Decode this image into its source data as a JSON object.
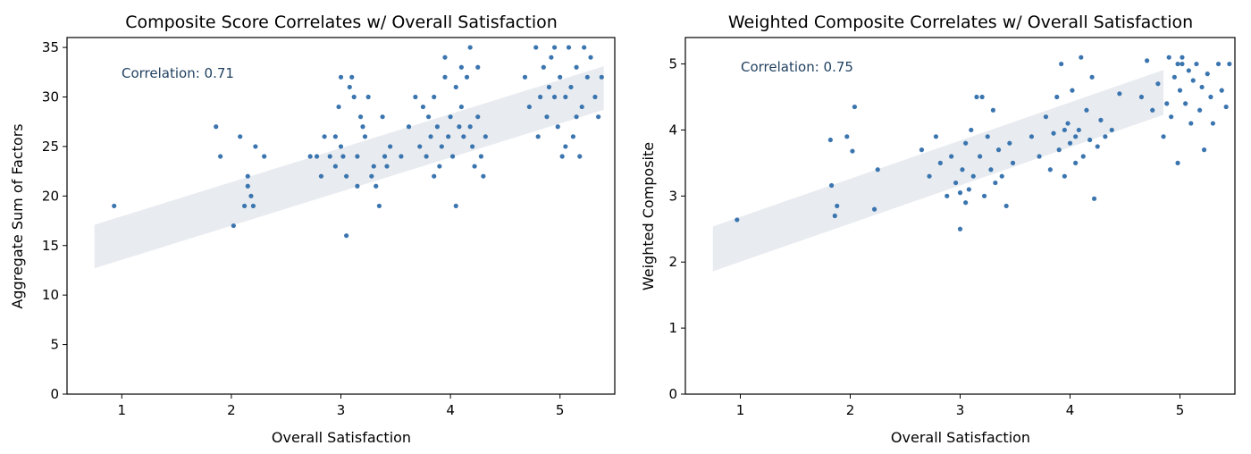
{
  "chart_data": [
    {
      "type": "scatter",
      "title": "Composite Score Correlates w/ Overall Satisfaction",
      "xlabel": "Overall Satisfaction",
      "ylabel": "Aggregate Sum of Factors",
      "xlim": [
        0.5,
        5.5
      ],
      "ylim": [
        0,
        36
      ],
      "xticks": [
        1,
        2,
        3,
        4,
        5
      ],
      "yticks": [
        0,
        5,
        10,
        15,
        20,
        25,
        30,
        35
      ],
      "annotation": "Correlation: 0.71",
      "point_color": "#3b75af",
      "band_color": "#e8ecf0",
      "trend_band": {
        "x": [
          0.75,
          5.4
        ],
        "y_center": [
          14.9,
          30.9
        ],
        "half_width": 2.2
      },
      "points": [
        {
          "x": 0.93,
          "y": 19
        },
        {
          "x": 1.86,
          "y": 27
        },
        {
          "x": 1.9,
          "y": 24
        },
        {
          "x": 2.02,
          "y": 17
        },
        {
          "x": 2.08,
          "y": 26
        },
        {
          "x": 2.12,
          "y": 19
        },
        {
          "x": 2.15,
          "y": 22
        },
        {
          "x": 2.15,
          "y": 21
        },
        {
          "x": 2.18,
          "y": 20
        },
        {
          "x": 2.2,
          "y": 19
        },
        {
          "x": 2.22,
          "y": 25
        },
        {
          "x": 2.3,
          "y": 24
        },
        {
          "x": 2.72,
          "y": 24
        },
        {
          "x": 2.78,
          "y": 24
        },
        {
          "x": 2.82,
          "y": 22
        },
        {
          "x": 2.85,
          "y": 26
        },
        {
          "x": 2.9,
          "y": 24
        },
        {
          "x": 2.95,
          "y": 26
        },
        {
          "x": 2.98,
          "y": 29
        },
        {
          "x": 3.0,
          "y": 32
        },
        {
          "x": 3.02,
          "y": 24
        },
        {
          "x": 3.05,
          "y": 22
        },
        {
          "x": 3.05,
          "y": 16
        },
        {
          "x": 3.08,
          "y": 31
        },
        {
          "x": 3.1,
          "y": 32
        },
        {
          "x": 3.12,
          "y": 30
        },
        {
          "x": 3.15,
          "y": 24
        },
        {
          "x": 3.18,
          "y": 28
        },
        {
          "x": 3.2,
          "y": 27
        },
        {
          "x": 3.22,
          "y": 26
        },
        {
          "x": 3.25,
          "y": 30
        },
        {
          "x": 3.28,
          "y": 22
        },
        {
          "x": 3.3,
          "y": 23
        },
        {
          "x": 3.32,
          "y": 21
        },
        {
          "x": 3.35,
          "y": 19
        },
        {
          "x": 3.38,
          "y": 28
        },
        {
          "x": 3.4,
          "y": 24
        },
        {
          "x": 3.42,
          "y": 23
        },
        {
          "x": 3.45,
          "y": 25
        },
        {
          "x": 2.95,
          "y": 23
        },
        {
          "x": 3.15,
          "y": 21
        },
        {
          "x": 3.0,
          "y": 25
        },
        {
          "x": 3.55,
          "y": 24
        },
        {
          "x": 3.62,
          "y": 27
        },
        {
          "x": 3.68,
          "y": 30
        },
        {
          "x": 3.72,
          "y": 25
        },
        {
          "x": 3.75,
          "y": 29
        },
        {
          "x": 3.78,
          "y": 24
        },
        {
          "x": 3.8,
          "y": 28
        },
        {
          "x": 3.82,
          "y": 26
        },
        {
          "x": 3.85,
          "y": 30
        },
        {
          "x": 3.88,
          "y": 27
        },
        {
          "x": 3.9,
          "y": 23
        },
        {
          "x": 3.92,
          "y": 25
        },
        {
          "x": 3.95,
          "y": 32
        },
        {
          "x": 3.98,
          "y": 26
        },
        {
          "x": 4.0,
          "y": 28
        },
        {
          "x": 4.02,
          "y": 24
        },
        {
          "x": 4.05,
          "y": 19
        },
        {
          "x": 4.08,
          "y": 27
        },
        {
          "x": 4.1,
          "y": 29
        },
        {
          "x": 4.12,
          "y": 26
        },
        {
          "x": 4.15,
          "y": 32
        },
        {
          "x": 4.18,
          "y": 27
        },
        {
          "x": 4.2,
          "y": 25
        },
        {
          "x": 4.22,
          "y": 23
        },
        {
          "x": 4.25,
          "y": 28
        },
        {
          "x": 4.28,
          "y": 24
        },
        {
          "x": 4.3,
          "y": 22
        },
        {
          "x": 4.32,
          "y": 26
        },
        {
          "x": 4.1,
          "y": 33
        },
        {
          "x": 4.18,
          "y": 35
        },
        {
          "x": 3.95,
          "y": 34
        },
        {
          "x": 4.25,
          "y": 33
        },
        {
          "x": 4.05,
          "y": 31
        },
        {
          "x": 3.85,
          "y": 22
        },
        {
          "x": 4.68,
          "y": 32
        },
        {
          "x": 4.72,
          "y": 29
        },
        {
          "x": 4.78,
          "y": 35
        },
        {
          "x": 4.82,
          "y": 30
        },
        {
          "x": 4.85,
          "y": 33
        },
        {
          "x": 4.88,
          "y": 28
        },
        {
          "x": 4.9,
          "y": 31
        },
        {
          "x": 4.92,
          "y": 34
        },
        {
          "x": 4.95,
          "y": 30
        },
        {
          "x": 4.98,
          "y": 27
        },
        {
          "x": 5.0,
          "y": 32
        },
        {
          "x": 5.02,
          "y": 24
        },
        {
          "x": 5.05,
          "y": 30
        },
        {
          "x": 5.08,
          "y": 35
        },
        {
          "x": 5.1,
          "y": 31
        },
        {
          "x": 5.12,
          "y": 26
        },
        {
          "x": 5.15,
          "y": 33
        },
        {
          "x": 5.18,
          "y": 24
        },
        {
          "x": 5.2,
          "y": 29
        },
        {
          "x": 5.22,
          "y": 35
        },
        {
          "x": 5.25,
          "y": 32
        },
        {
          "x": 5.28,
          "y": 34
        },
        {
          "x": 5.32,
          "y": 30
        },
        {
          "x": 5.35,
          "y": 28
        },
        {
          "x": 5.38,
          "y": 32
        },
        {
          "x": 5.05,
          "y": 25
        },
        {
          "x": 4.95,
          "y": 35
        },
        {
          "x": 5.15,
          "y": 28
        },
        {
          "x": 4.8,
          "y": 26
        }
      ]
    },
    {
      "type": "scatter",
      "title": "Weighted Composite Correlates w/ Overall Satisfaction",
      "xlabel": "Overall Satisfaction",
      "ylabel": "Weighted Composite",
      "xlim": [
        0.5,
        5.5
      ],
      "ylim": [
        0,
        5.4
      ],
      "xticks": [
        1,
        2,
        3,
        4,
        5
      ],
      "yticks": [
        0,
        1,
        2,
        3,
        4,
        5
      ],
      "annotation": "Correlation: 0.75",
      "point_color": "#3b75af",
      "band_color": "#e8ecf0",
      "trend_band": {
        "x": [
          0.75,
          4.85
        ],
        "y_center": [
          2.2,
          4.57
        ],
        "half_width": 0.34
      },
      "points": [
        {
          "x": 0.97,
          "y": 2.64
        },
        {
          "x": 1.82,
          "y": 3.85
        },
        {
          "x": 1.83,
          "y": 3.16
        },
        {
          "x": 1.86,
          "y": 2.7
        },
        {
          "x": 1.88,
          "y": 2.85
        },
        {
          "x": 1.97,
          "y": 3.9
        },
        {
          "x": 2.02,
          "y": 3.68
        },
        {
          "x": 2.04,
          "y": 4.35
        },
        {
          "x": 2.22,
          "y": 2.8
        },
        {
          "x": 2.25,
          "y": 3.4
        },
        {
          "x": 2.65,
          "y": 3.7
        },
        {
          "x": 2.72,
          "y": 3.3
        },
        {
          "x": 2.78,
          "y": 3.9
        },
        {
          "x": 2.82,
          "y": 3.5
        },
        {
          "x": 2.88,
          "y": 3.0
        },
        {
          "x": 2.92,
          "y": 3.6
        },
        {
          "x": 2.96,
          "y": 3.2
        },
        {
          "x": 3.0,
          "y": 2.5
        },
        {
          "x": 3.02,
          "y": 3.4
        },
        {
          "x": 3.05,
          "y": 3.8
        },
        {
          "x": 3.08,
          "y": 3.1
        },
        {
          "x": 3.1,
          "y": 4.0
        },
        {
          "x": 3.12,
          "y": 3.3
        },
        {
          "x": 3.15,
          "y": 4.5
        },
        {
          "x": 3.18,
          "y": 3.6
        },
        {
          "x": 3.2,
          "y": 4.5
        },
        {
          "x": 3.22,
          "y": 3.0
        },
        {
          "x": 3.25,
          "y": 3.9
        },
        {
          "x": 3.28,
          "y": 3.4
        },
        {
          "x": 3.3,
          "y": 4.3
        },
        {
          "x": 3.32,
          "y": 3.2
        },
        {
          "x": 3.35,
          "y": 3.7
        },
        {
          "x": 3.38,
          "y": 3.3
        },
        {
          "x": 3.42,
          "y": 2.85
        },
        {
          "x": 3.45,
          "y": 3.8
        },
        {
          "x": 3.48,
          "y": 3.5
        },
        {
          "x": 3.0,
          "y": 3.05
        },
        {
          "x": 3.05,
          "y": 2.9
        },
        {
          "x": 3.65,
          "y": 3.9
        },
        {
          "x": 3.72,
          "y": 3.6
        },
        {
          "x": 3.78,
          "y": 4.2
        },
        {
          "x": 3.82,
          "y": 3.4
        },
        {
          "x": 3.85,
          "y": 3.95
        },
        {
          "x": 3.88,
          "y": 4.5
        },
        {
          "x": 3.9,
          "y": 3.7
        },
        {
          "x": 3.92,
          "y": 5.0
        },
        {
          "x": 3.95,
          "y": 3.3
        },
        {
          "x": 3.98,
          "y": 4.1
        },
        {
          "x": 4.0,
          "y": 3.8
        },
        {
          "x": 4.02,
          "y": 4.6
        },
        {
          "x": 4.05,
          "y": 3.5
        },
        {
          "x": 4.08,
          "y": 4.0
        },
        {
          "x": 4.1,
          "y": 5.1
        },
        {
          "x": 4.12,
          "y": 3.6
        },
        {
          "x": 4.15,
          "y": 4.3
        },
        {
          "x": 4.18,
          "y": 3.85
        },
        {
          "x": 4.2,
          "y": 4.8
        },
        {
          "x": 4.22,
          "y": 2.96
        },
        {
          "x": 4.25,
          "y": 3.75
        },
        {
          "x": 4.28,
          "y": 4.15
        },
        {
          "x": 4.32,
          "y": 3.9
        },
        {
          "x": 4.38,
          "y": 4.0
        },
        {
          "x": 4.45,
          "y": 4.55
        },
        {
          "x": 3.95,
          "y": 4.0
        },
        {
          "x": 4.05,
          "y": 3.9
        },
        {
          "x": 4.65,
          "y": 4.5
        },
        {
          "x": 4.7,
          "y": 5.05
        },
        {
          "x": 4.75,
          "y": 4.3
        },
        {
          "x": 4.8,
          "y": 4.7
        },
        {
          "x": 4.85,
          "y": 3.9
        },
        {
          "x": 4.88,
          "y": 4.4
        },
        {
          "x": 4.9,
          "y": 5.1
        },
        {
          "x": 4.92,
          "y": 4.2
        },
        {
          "x": 4.95,
          "y": 4.8
        },
        {
          "x": 4.98,
          "y": 3.5
        },
        {
          "x": 5.0,
          "y": 4.6
        },
        {
          "x": 5.02,
          "y": 5.1
        },
        {
          "x": 5.05,
          "y": 4.4
        },
        {
          "x": 5.08,
          "y": 4.9
        },
        {
          "x": 5.1,
          "y": 4.1
        },
        {
          "x": 5.12,
          "y": 4.75
        },
        {
          "x": 5.15,
          "y": 5.0
        },
        {
          "x": 5.18,
          "y": 4.3
        },
        {
          "x": 5.2,
          "y": 4.65
        },
        {
          "x": 5.22,
          "y": 3.7
        },
        {
          "x": 5.25,
          "y": 4.85
        },
        {
          "x": 5.28,
          "y": 4.5
        },
        {
          "x": 5.3,
          "y": 4.1
        },
        {
          "x": 5.35,
          "y": 5.0
        },
        {
          "x": 5.38,
          "y": 4.6
        },
        {
          "x": 5.42,
          "y": 4.35
        },
        {
          "x": 5.45,
          "y": 5.0
        },
        {
          "x": 5.02,
          "y": 5.0
        },
        {
          "x": 4.98,
          "y": 5.0
        }
      ]
    }
  ]
}
